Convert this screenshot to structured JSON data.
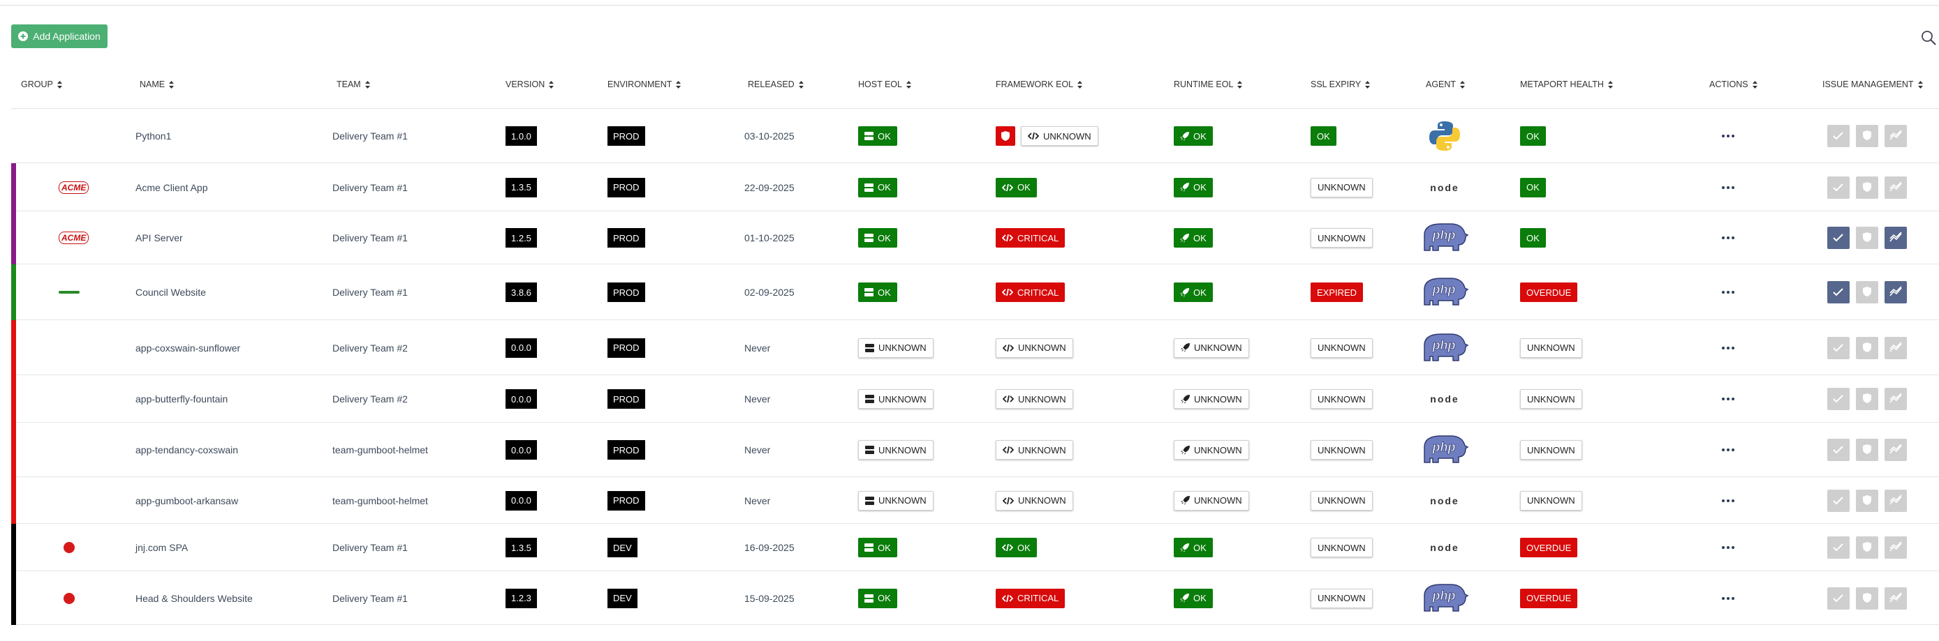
{
  "toolbar": {
    "add_button": "Add Application"
  },
  "table": {
    "headers": [
      "GROUP",
      "NAME",
      "TEAM",
      "VERSION",
      "ENVIRONMENT",
      "RELEASED",
      "HOST EOL",
      "FRAMEWORK EOL",
      "RUNTIME EOL",
      "SSL EXPIRY",
      "AGENT",
      "METAPORT HEALTH",
      "ACTIONS",
      "ISSUE MANAGEMENT"
    ],
    "rows": [
      {
        "group": {
          "color": null,
          "logo": null
        },
        "name": "Python1",
        "team": "Delivery Team #1",
        "version": "1.0.0",
        "environment": "PROD",
        "released": "03-10-2025",
        "host_eol": "OK",
        "framework_eol": "UNKNOWN",
        "framework_alert": true,
        "runtime_eol": "OK",
        "ssl_expiry": "OK",
        "agent": "python",
        "health": "OK",
        "issues": [
          false,
          false,
          false
        ]
      },
      {
        "group": {
          "color": "#8a1a8a",
          "logo": "ACME"
        },
        "name": "Acme Client App",
        "team": "Delivery Team #1",
        "version": "1.3.5",
        "environment": "PROD",
        "released": "22-09-2025",
        "host_eol": "OK",
        "framework_eol": "OK",
        "framework_alert": false,
        "runtime_eol": "OK",
        "ssl_expiry": "UNKNOWN",
        "agent": "node",
        "health": "OK",
        "issues": [
          false,
          false,
          false
        ]
      },
      {
        "group": {
          "color": "#8a1a8a",
          "logo": "ACME"
        },
        "name": "API Server",
        "team": "Delivery Team #1",
        "version": "1.2.5",
        "environment": "PROD",
        "released": "01-10-2025",
        "host_eol": "OK",
        "framework_eol": "CRITICAL",
        "framework_alert": false,
        "runtime_eol": "OK",
        "ssl_expiry": "UNKNOWN",
        "agent": "php",
        "health": "OK",
        "issues": [
          true,
          false,
          true
        ]
      },
      {
        "group": {
          "color": "#1a8a1a",
          "logo": null
        },
        "name": "Council Website",
        "team": "Delivery Team #1",
        "version": "3.8.6",
        "environment": "PROD",
        "released": "02-09-2025",
        "host_eol": "OK",
        "framework_eol": "CRITICAL",
        "framework_alert": false,
        "runtime_eol": "OK",
        "ssl_expiry": "EXPIRED",
        "agent": "php",
        "health": "OVERDUE",
        "issues": [
          true,
          false,
          true
        ]
      },
      {
        "group": {
          "color": "#e01010",
          "logo": null
        },
        "name": "app-coxswain-sunflower",
        "team": "Delivery Team #2",
        "version": "0.0.0",
        "environment": "PROD",
        "released": "Never",
        "host_eol": "UNKNOWN",
        "framework_eol": "UNKNOWN",
        "framework_alert": false,
        "runtime_eol": "UNKNOWN",
        "ssl_expiry": "UNKNOWN",
        "agent": "php",
        "health": "UNKNOWN",
        "issues": [
          false,
          false,
          false
        ]
      },
      {
        "group": {
          "color": "#e01010",
          "logo": null
        },
        "name": "app-butterfly-fountain",
        "team": "Delivery Team #2",
        "version": "0.0.0",
        "environment": "PROD",
        "released": "Never",
        "host_eol": "UNKNOWN",
        "framework_eol": "UNKNOWN",
        "framework_alert": false,
        "runtime_eol": "UNKNOWN",
        "ssl_expiry": "UNKNOWN",
        "agent": "node",
        "health": "UNKNOWN",
        "issues": [
          false,
          false,
          false
        ]
      },
      {
        "group": {
          "color": "#e01010",
          "logo": null
        },
        "name": "app-tendancy-coxswain",
        "team": "team-gumboot-helmet",
        "version": "0.0.0",
        "environment": "PROD",
        "released": "Never",
        "host_eol": "UNKNOWN",
        "framework_eol": "UNKNOWN",
        "framework_alert": false,
        "runtime_eol": "UNKNOWN",
        "ssl_expiry": "UNKNOWN",
        "agent": "php",
        "health": "UNKNOWN",
        "issues": [
          false,
          false,
          false
        ]
      },
      {
        "group": {
          "color": "#e01010",
          "logo": null
        },
        "name": "app-gumboot-arkansaw",
        "team": "team-gumboot-helmet",
        "version": "0.0.0",
        "environment": "PROD",
        "released": "Never",
        "host_eol": "UNKNOWN",
        "framework_eol": "UNKNOWN",
        "framework_alert": false,
        "runtime_eol": "UNKNOWN",
        "ssl_expiry": "UNKNOWN",
        "agent": "node",
        "health": "UNKNOWN",
        "issues": [
          false,
          false,
          false
        ]
      },
      {
        "group": {
          "color": "#000000",
          "logo": null
        },
        "name": "jnj.com SPA",
        "team": "Delivery Team #1",
        "version": "1.3.5",
        "environment": "DEV",
        "released": "16-09-2025",
        "host_eol": "OK",
        "framework_eol": "OK",
        "framework_alert": false,
        "runtime_eol": "OK",
        "ssl_expiry": "UNKNOWN",
        "agent": "node",
        "health": "OVERDUE",
        "issues": [
          false,
          false,
          false
        ]
      },
      {
        "group": {
          "color": "#000000",
          "logo": null
        },
        "name": "Head & Shoulders Website",
        "team": "Delivery Team #1",
        "version": "1.2.3",
        "environment": "DEV",
        "released": "15-09-2025",
        "host_eol": "OK",
        "framework_eol": "CRITICAL",
        "framework_alert": false,
        "runtime_eol": "OK",
        "ssl_expiry": "UNKNOWN",
        "agent": "php",
        "health": "OVERDUE",
        "issues": [
          false,
          false,
          false
        ]
      }
    ]
  }
}
